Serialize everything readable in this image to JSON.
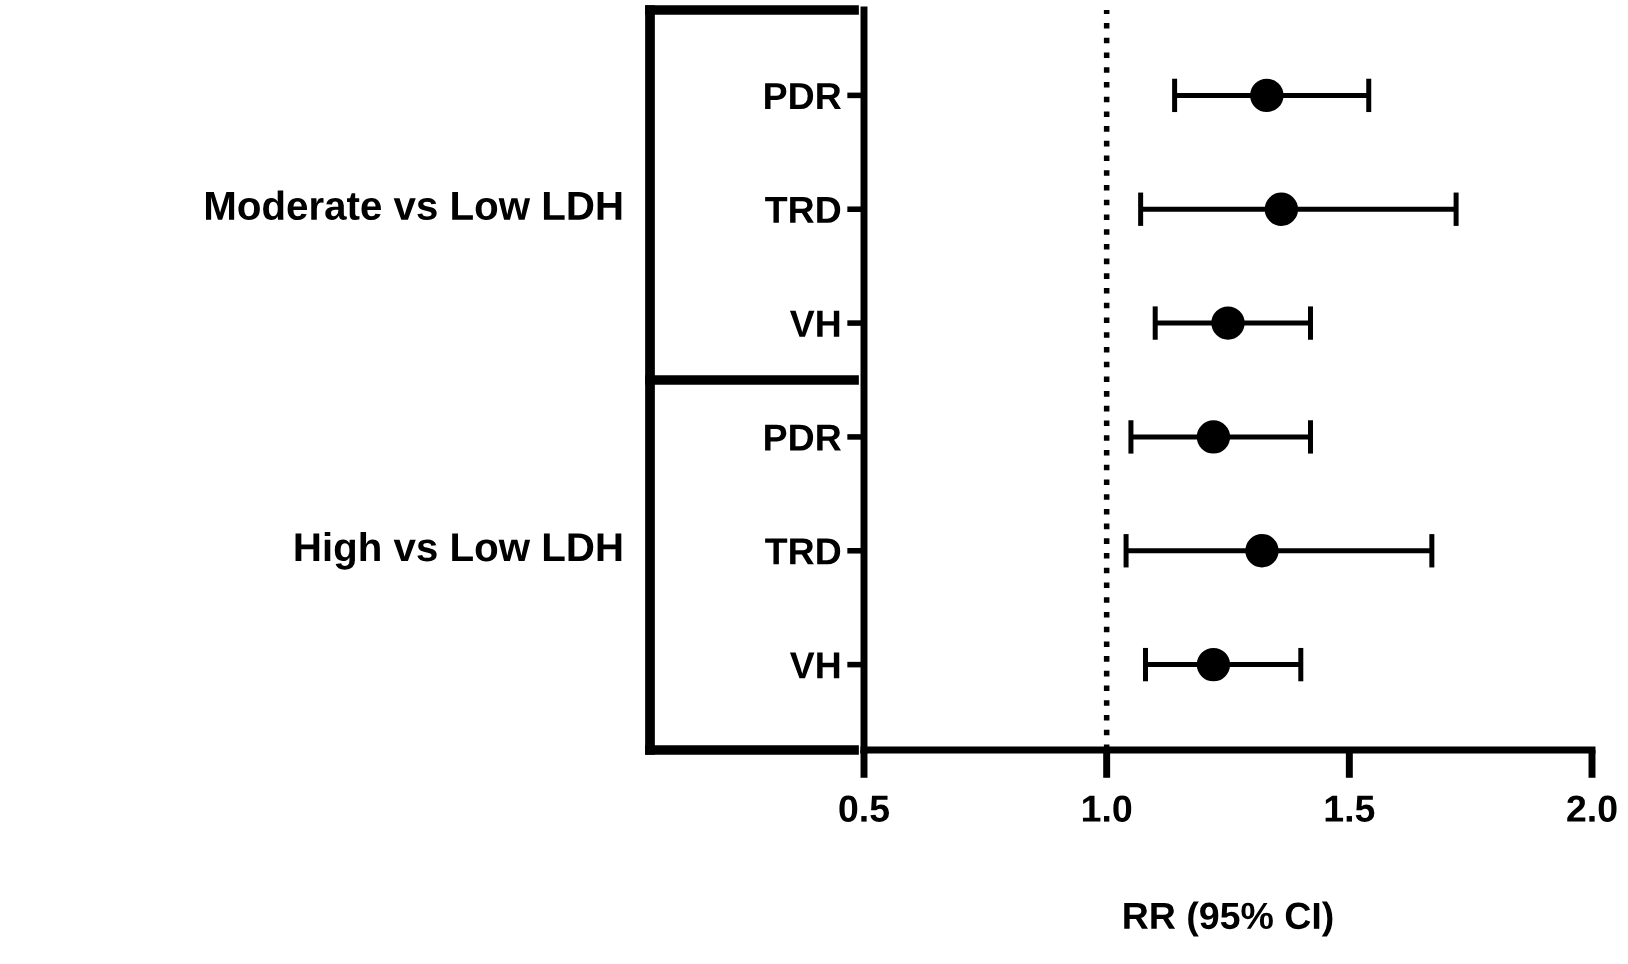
{
  "chart_data": {
    "type": "scatter",
    "orientation": "horizontal",
    "xlabel": "RR (95% CI)",
    "categories": [
      "PDR",
      "TRD",
      "VH",
      "PDR",
      "TRD",
      "VH"
    ],
    "series": [
      {
        "color": "#000000",
        "values": [
          1.33,
          1.36,
          1.25,
          1.22,
          1.32,
          1.22
        ],
        "errors": [
          [
            1.14,
            1.54
          ],
          [
            1.07,
            1.72
          ],
          [
            1.1,
            1.42
          ],
          [
            1.05,
            1.42
          ],
          [
            1.04,
            1.67
          ],
          [
            1.08,
            1.4
          ]
        ]
      }
    ],
    "xlim": [
      0.5,
      2.0
    ],
    "xticks": [
      0.5,
      {
        "value": 1,
        "label": "1.0"
      },
      1.5,
      {
        "value": 2,
        "label": "2.0"
      }
    ],
    "ref_lines": [
      {
        "axis": "x",
        "value": 1.0,
        "line_style": "dotted",
        "color": "#000000"
      }
    ],
    "annotations": [
      "Moderate vs Low LDH",
      "High vs Low LDH"
    ],
    "marker": "circle",
    "grid": false
  }
}
